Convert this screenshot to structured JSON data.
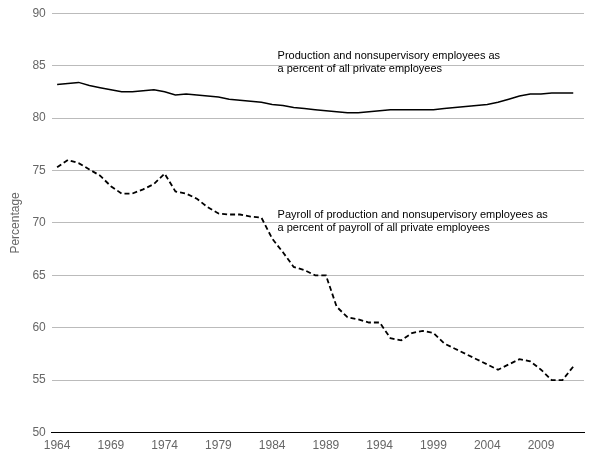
{
  "chart_data": {
    "type": "line",
    "y_label": "Percentage",
    "xlim": [
      1963.5,
      2013
    ],
    "ylim": [
      50,
      90
    ],
    "xticks": [
      1964,
      1969,
      1974,
      1979,
      1984,
      1989,
      1994,
      1999,
      2004,
      2009
    ],
    "yticks": [
      50,
      55,
      60,
      65,
      70,
      75,
      80,
      85,
      90
    ],
    "grid": "y",
    "legend": false,
    "x": [
      1964,
      1965,
      1966,
      1967,
      1968,
      1969,
      1970,
      1971,
      1972,
      1973,
      1974,
      1975,
      1976,
      1977,
      1978,
      1979,
      1980,
      1981,
      1982,
      1983,
      1984,
      1985,
      1986,
      1987,
      1988,
      1989,
      1990,
      1991,
      1992,
      1993,
      1994,
      1995,
      1996,
      1997,
      1998,
      1999,
      2000,
      2001,
      2002,
      2003,
      2004,
      2005,
      2006,
      2007,
      2008,
      2009,
      2010,
      2011,
      2012
    ],
    "series": [
      {
        "color": "#000000",
        "line_style": "solid",
        "values": [
          83.2,
          83.3,
          83.4,
          83.1,
          82.9,
          82.7,
          82.5,
          82.5,
          82.6,
          82.7,
          82.5,
          82.2,
          82.3,
          82.2,
          82.1,
          82.0,
          81.8,
          81.7,
          81.6,
          81.5,
          81.3,
          81.2,
          81.0,
          80.9,
          80.8,
          80.7,
          80.6,
          80.5,
          80.5,
          80.6,
          80.7,
          80.8,
          80.8,
          80.8,
          80.8,
          80.8,
          80.9,
          81.0,
          81.1,
          81.2,
          81.3,
          81.5,
          81.8,
          82.1,
          82.3,
          82.3,
          82.4,
          82.4,
          82.4
        ]
      },
      {
        "color": "#000000",
        "line_style": "dashed",
        "values": [
          75.3,
          76.0,
          75.7,
          75.1,
          74.5,
          73.5,
          72.8,
          72.8,
          73.2,
          73.7,
          74.7,
          73.0,
          72.8,
          72.3,
          71.5,
          70.9,
          70.8,
          70.8,
          70.6,
          70.5,
          68.5,
          67.2,
          65.8,
          65.5,
          65.0,
          65.0,
          62.0,
          61.0,
          60.8,
          60.5,
          60.5,
          59.0,
          58.8,
          59.5,
          59.7,
          59.5,
          58.5,
          58.0,
          57.5,
          57.0,
          56.5,
          56.0,
          56.5,
          57.0,
          56.8,
          56.0,
          55.0,
          55.0,
          56.3
        ]
      }
    ],
    "annotations": [
      {
        "lines": [
          "Production and nonsupervisory employees as",
          "a percent of all private employees"
        ],
        "x": 1984.5,
        "y": 84.2
      },
      {
        "lines": [
          "Payroll of production and nonsupervisory employees as",
          "a percent of payroll of all private employees"
        ],
        "x": 1984.5,
        "y": 69.0
      }
    ]
  }
}
